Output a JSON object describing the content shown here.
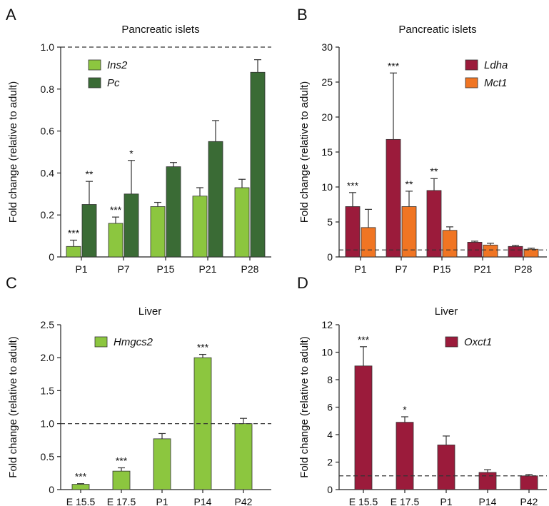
{
  "chart_data": [
    {
      "panel": "A",
      "type": "bar",
      "title": "Pancreatic islets",
      "ylabel": "Fold change (relative to adult)",
      "categories": [
        "P1",
        "P7",
        "P15",
        "P21",
        "P28"
      ],
      "ylim": [
        0,
        1.0
      ],
      "yticks": [
        "0",
        "0.2",
        "0.4",
        "0.6",
        "0.8",
        "1.0"
      ],
      "reference_line": 1.0,
      "legend_position": "top-left",
      "series": [
        {
          "name": "Ins2",
          "color": "#8cc63f",
          "values": [
            0.05,
            0.16,
            0.24,
            0.29,
            0.33
          ],
          "errors": [
            0.03,
            0.03,
            0.02,
            0.04,
            0.04
          ]
        },
        {
          "name": "Pc",
          "color": "#3a6b35",
          "values": [
            0.25,
            0.3,
            0.43,
            0.55,
            0.88
          ],
          "errors": [
            0.11,
            0.16,
            0.02,
            0.1,
            0.06
          ]
        }
      ],
      "annotations": [
        {
          "category": "P1",
          "series": "Ins2",
          "text": "***"
        },
        {
          "category": "P1",
          "series": "Pc",
          "text": "**"
        },
        {
          "category": "P7",
          "series": "Ins2",
          "text": "***"
        },
        {
          "category": "P7",
          "series": "Pc",
          "text": "*"
        }
      ]
    },
    {
      "panel": "B",
      "type": "bar",
      "title": "Pancreatic islets",
      "ylabel": "Fold change (relative to adult)",
      "categories": [
        "P1",
        "P7",
        "P15",
        "P21",
        "P28"
      ],
      "ylim": [
        0,
        30
      ],
      "yticks": [
        "0",
        "5",
        "10",
        "15",
        "20",
        "25",
        "30"
      ],
      "reference_line": 1.0,
      "legend_position": "top-right",
      "series": [
        {
          "name": "Ldha",
          "color": "#9b1b3b",
          "values": [
            7.2,
            16.8,
            9.5,
            2.1,
            1.5
          ],
          "errors": [
            2.0,
            9.5,
            1.7,
            0.15,
            0.15
          ]
        },
        {
          "name": "Mct1",
          "color": "#f07523",
          "values": [
            4.2,
            7.2,
            3.8,
            1.7,
            1.1
          ],
          "errors": [
            2.6,
            2.2,
            0.5,
            0.25,
            0.15
          ]
        }
      ],
      "annotations": [
        {
          "category": "P1",
          "series": "Ldha",
          "text": "***"
        },
        {
          "category": "P7",
          "series": "Ldha",
          "text": "***"
        },
        {
          "category": "P7",
          "series": "Mct1",
          "text": "**"
        },
        {
          "category": "P15",
          "series": "Ldha",
          "text": "**"
        }
      ]
    },
    {
      "panel": "C",
      "type": "bar",
      "title": "Liver",
      "ylabel": "Fold change (relative to adult)",
      "categories": [
        "E 15.5",
        "E 17.5",
        "P1",
        "P14",
        "P42"
      ],
      "ylim": [
        0,
        2.5
      ],
      "yticks": [
        "0",
        "0.5",
        "1.0",
        "1.5",
        "2.0",
        "2.5"
      ],
      "reference_line": 1.0,
      "legend_position": "top-left",
      "series": [
        {
          "name": "Hmgcs2",
          "color": "#8cc63f",
          "values": [
            0.08,
            0.28,
            0.77,
            2.0,
            1.0
          ],
          "errors": [
            0.01,
            0.05,
            0.08,
            0.05,
            0.08
          ]
        }
      ],
      "annotations": [
        {
          "category": "E 15.5",
          "series": "Hmgcs2",
          "text": "***"
        },
        {
          "category": "E 17.5",
          "series": "Hmgcs2",
          "text": "***"
        },
        {
          "category": "P14",
          "series": "Hmgcs2",
          "text": "***"
        }
      ]
    },
    {
      "panel": "D",
      "type": "bar",
      "title": "Liver",
      "ylabel": "Fold change (relative to adult)",
      "categories": [
        "E 15.5",
        "E 17.5",
        "P1",
        "P14",
        "P42"
      ],
      "ylim": [
        0,
        12
      ],
      "yticks": [
        "0",
        "2",
        "4",
        "6",
        "8",
        "10",
        "12"
      ],
      "reference_line": 1.0,
      "legend_position": "top-right",
      "series": [
        {
          "name": "Oxct1",
          "color": "#9b1b3b",
          "values": [
            9.0,
            4.9,
            3.25,
            1.25,
            1.0
          ],
          "errors": [
            1.4,
            0.4,
            0.65,
            0.2,
            0.1
          ]
        }
      ],
      "annotations": [
        {
          "category": "E 15.5",
          "series": "Oxct1",
          "text": "***"
        },
        {
          "category": "E 17.5",
          "series": "Oxct1",
          "text": "*"
        }
      ]
    }
  ]
}
